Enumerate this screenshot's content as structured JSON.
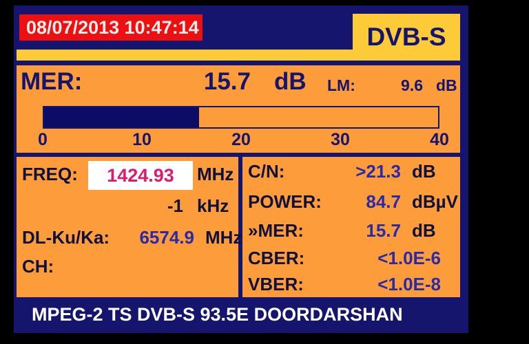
{
  "header": {
    "datetime": "08/07/2013 10:47:14",
    "mode": "DVB-S"
  },
  "mer": {
    "label": "MER:",
    "value": "15.7",
    "unit": "dB",
    "lm_label": "LM:",
    "lm_value": "9.6",
    "lm_unit": "dB",
    "bar": {
      "min": 0,
      "max": 40,
      "value": 15.7,
      "fill_percent": 39.25,
      "ticks": [
        "0",
        "10",
        "20",
        "30",
        "40"
      ]
    }
  },
  "tuning": {
    "freq_label": "FREQ:",
    "freq_value": "1424.93",
    "freq_unit": "MHz",
    "offset_value": "-1",
    "offset_unit": "kHz",
    "dl_label": "DL-Ku/Ka:",
    "dl_value": "6574.9",
    "dl_unit": "MHz",
    "ch_label": "CH:"
  },
  "measurements": {
    "rows": [
      {
        "label": "C/N:",
        "value": ">21.3",
        "unit": "dB"
      },
      {
        "label": "POWER:",
        "value": "84.7",
        "unit": "dBµV"
      },
      {
        "label": "»MER:",
        "value": "15.7",
        "unit": "dB"
      },
      {
        "label": "CBER:",
        "value": "<1.0E-6",
        "unit": ""
      },
      {
        "label": "VBER:",
        "value": "<1.0E-8",
        "unit": ""
      }
    ]
  },
  "status_bar": {
    "text": "MPEG-2 TS DVB-S 93.5E DOORDARSHAN"
  },
  "colors": {
    "background": "#000000",
    "navy": "#15156d",
    "orange": "#fd9c3b",
    "yellow": "#fdca38",
    "red": "#ee1010",
    "freq_pink": "#dd1b6e",
    "value_blue": "#2a2aa8",
    "white": "#ffffff"
  }
}
